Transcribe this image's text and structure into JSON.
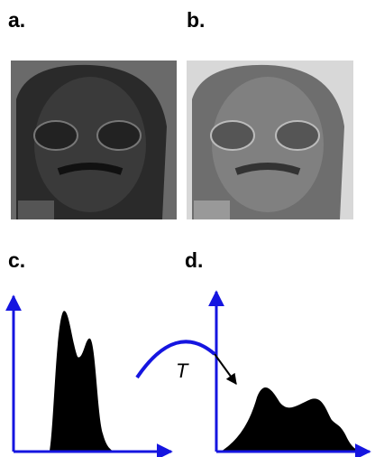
{
  "panels": [
    {
      "label": "a."
    },
    {
      "label": "b."
    },
    {
      "label": "c."
    },
    {
      "label": "d."
    }
  ],
  "transform_label": "T"
}
